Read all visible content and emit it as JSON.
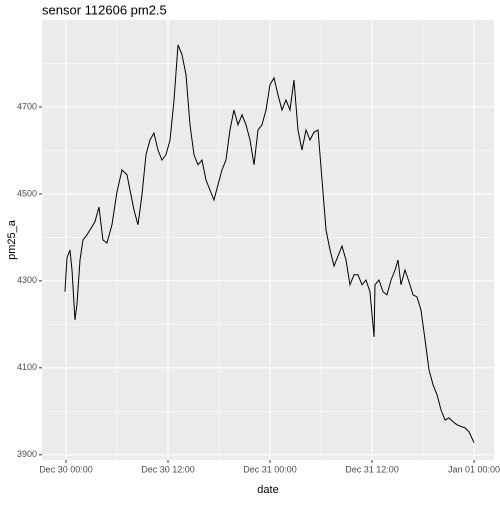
{
  "chart_data": {
    "type": "line",
    "title": "sensor 112606 pm2.5",
    "xlabel": "date",
    "ylabel": "pm25_a",
    "series": [
      {
        "name": "pm25_a",
        "color": "#000000",
        "x": [
          -0.12,
          0.12,
          0.47,
          0.71,
          1.06,
          1.29,
          1.65,
          2.0,
          2.47,
          2.82,
          3.41,
          3.88,
          4.35,
          4.82,
          5.41,
          6.0,
          6.59,
          7.18,
          7.53,
          8.0,
          8.47,
          8.94,
          9.41,
          9.88,
          10.35,
          10.82,
          11.29,
          11.76,
          12.24,
          12.71,
          13.18,
          13.65,
          14.12,
          14.59,
          15.06,
          15.53,
          16.0,
          16.47,
          16.94,
          17.41,
          17.88,
          18.35,
          18.82,
          19.29,
          19.76,
          20.24,
          20.71,
          21.18,
          21.65,
          22.12,
          22.59,
          23.06,
          23.53,
          24.0,
          24.47,
          24.94,
          25.41,
          25.88,
          26.35,
          26.82,
          27.29,
          27.76,
          28.24,
          28.71,
          29.18,
          29.65,
          30.12,
          30.59,
          31.06,
          31.53,
          32.0,
          32.47,
          32.94,
          33.41,
          33.88,
          34.35,
          34.82,
          35.29,
          35.76,
          36.24,
          36.35,
          36.82,
          37.29,
          37.76,
          38.24,
          38.71,
          39.06,
          39.41,
          39.88,
          40.35,
          40.82,
          41.29,
          41.76,
          42.24,
          42.71,
          43.18,
          43.65,
          44.12,
          44.59,
          45.06,
          45.53,
          46.0,
          46.47,
          46.94,
          47.41,
          48.0
        ],
        "values": [
          4275,
          4353,
          4371,
          4325,
          4210,
          4245,
          4348,
          4394,
          4406,
          4417,
          4436,
          4470,
          4394,
          4387,
          4429,
          4505,
          4555,
          4544,
          4509,
          4463,
          4429,
          4498,
          4590,
          4624,
          4640,
          4601,
          4578,
          4590,
          4624,
          4716,
          4843,
          4820,
          4774,
          4659,
          4590,
          4567,
          4578,
          4532,
          4509,
          4486,
          4521,
          4555,
          4578,
          4647,
          4693,
          4659,
          4682,
          4659,
          4624,
          4567,
          4647,
          4659,
          4693,
          4751,
          4767,
          4728,
          4693,
          4716,
          4693,
          4762,
          4647,
          4601,
          4647,
          4624,
          4642,
          4647,
          4532,
          4417,
          4371,
          4334,
          4357,
          4380,
          4348,
          4291,
          4314,
          4314,
          4291,
          4302,
          4275,
          4171,
          4291,
          4302,
          4275,
          4268,
          4302,
          4325,
          4348,
          4291,
          4325,
          4298,
          4268,
          4263,
          4233,
          4164,
          4095,
          4061,
          4038,
          4003,
          3980,
          3985,
          3976,
          3969,
          3965,
          3962,
          3953,
          3928
        ]
      }
    ],
    "xlim": [
      -2.82,
      50.35
    ],
    "ylim": [
      3888,
      4900
    ],
    "xticks": [
      {
        "value": 0,
        "label": "Dec 30 00:00"
      },
      {
        "value": 12,
        "label": "Dec 30 12:00"
      },
      {
        "value": 24,
        "label": "Dec 31 00:00"
      },
      {
        "value": 36,
        "label": "Dec 31 12:00"
      },
      {
        "value": 48,
        "label": "Jan 01 00:00"
      }
    ],
    "yticks": [
      3900,
      4100,
      4300,
      4500,
      4700
    ],
    "minor_xticks": [
      6,
      18,
      30,
      42
    ],
    "minor_yticks": [
      4000,
      4200,
      4400,
      4600,
      4800
    ],
    "grid": true
  }
}
